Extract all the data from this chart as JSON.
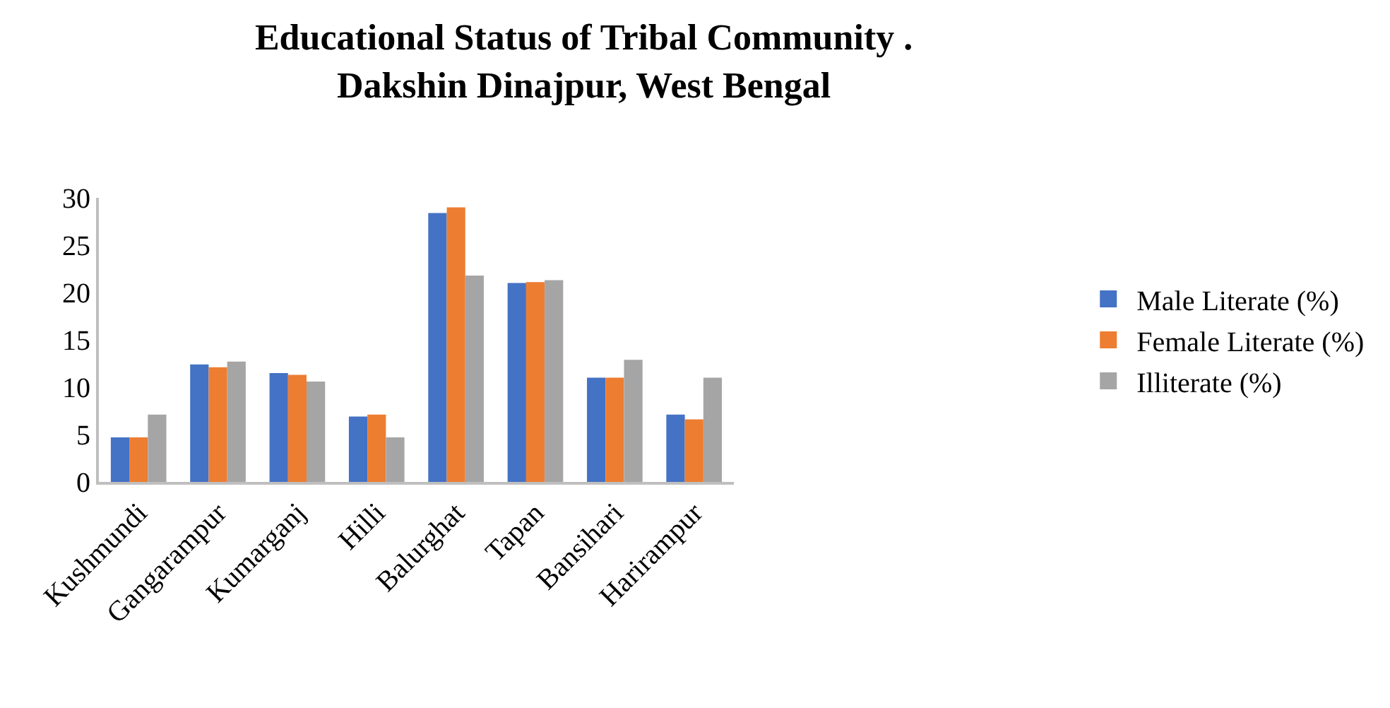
{
  "chart_data": {
    "type": "bar",
    "title": "Educational Status of Tribal Community . Dakshin Dinajpur, West Bengal",
    "categories": [
      "Kushmundi",
      "Gangarampur",
      "Kumarganj",
      "Hilli",
      "Balurghat",
      "Tapan",
      "Bansihari",
      "Harirampur"
    ],
    "series": [
      {
        "name": "Male Literate (%)",
        "color": "#4472c4",
        "values": [
          4.7,
          12.4,
          11.5,
          6.9,
          28.4,
          21.0,
          11.0,
          7.1
        ]
      },
      {
        "name": "Female Literate (%)",
        "color": "#ed7d31",
        "values": [
          4.7,
          12.1,
          11.3,
          7.1,
          29.0,
          21.1,
          11.0,
          6.6
        ]
      },
      {
        "name": "Illiterate (%)",
        "color": "#a5a5a5",
        "values": [
          7.1,
          12.7,
          10.6,
          4.7,
          21.8,
          21.3,
          12.9,
          11.0
        ]
      }
    ],
    "ylim": [
      0,
      30
    ],
    "yticks": [
      0,
      5,
      10,
      15,
      20,
      25,
      30
    ],
    "grid": false,
    "legend": "right"
  }
}
